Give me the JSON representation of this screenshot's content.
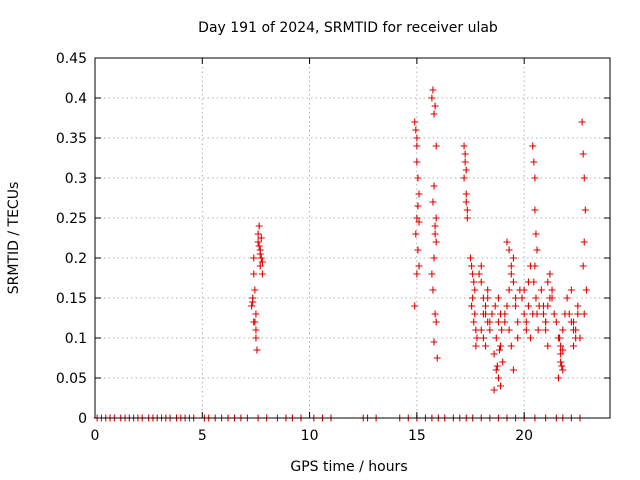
{
  "chart_data": {
    "type": "scatter",
    "title": "Day 191 of 2024, SRMTID for receiver ulab",
    "xlabel": "GPS time / hours",
    "ylabel": "SRMTID / TECUs",
    "xlim": [
      0,
      24
    ],
    "ylim": [
      0,
      0.45
    ],
    "xticks": [
      0,
      5,
      10,
      15,
      20
    ],
    "yticks": [
      0,
      0.05,
      0.1,
      0.15,
      0.2,
      0.25,
      0.3,
      0.35,
      0.4,
      0.45
    ],
    "xtick_labels": [
      "0",
      "5",
      "10",
      "15",
      "20"
    ],
    "ytick_labels": [
      "0",
      "0.05",
      "0.1",
      "0.15",
      "0.2",
      "0.25",
      "0.3",
      "0.35",
      "0.4",
      "0.45"
    ],
    "grid": true,
    "marker": "+",
    "color": "#e00000",
    "series": [
      {
        "name": "SRMTID",
        "x": [
          0.1,
          0.3,
          0.5,
          0.7,
          0.9,
          1.2,
          1.4,
          1.6,
          1.8,
          2.0,
          2.2,
          2.5,
          2.7,
          2.9,
          3.1,
          3.3,
          3.5,
          3.8,
          4.0,
          4.2,
          4.4,
          4.6,
          5.1,
          5.3,
          5.6,
          5.9,
          6.2,
          6.5,
          6.8,
          7.1,
          7.6,
          8.0,
          8.5,
          8.9,
          9.2,
          9.6,
          10.2,
          10.6,
          11.0,
          12.5,
          12.7,
          13.1,
          14.2,
          14.6,
          15.0,
          15.4,
          15.7,
          16.0,
          16.3,
          16.7,
          17.0,
          17.3,
          17.6,
          18.0,
          18.4,
          18.8,
          19.2,
          19.6,
          20.0,
          20.5,
          21.0,
          21.5,
          21.8,
          22.2,
          22.6,
          7.3,
          7.35,
          7.4,
          7.4,
          7.45,
          7.5,
          7.5,
          7.55,
          7.4,
          7.45,
          7.5,
          7.35,
          7.6,
          7.65,
          7.7,
          7.7,
          7.75,
          7.8,
          7.75,
          7.6,
          7.65,
          7.7,
          7.8,
          14.9,
          14.95,
          15.0,
          15.0,
          15.05,
          15.1,
          15.0,
          14.95,
          15.05,
          15.1,
          15.0,
          14.9,
          15.05,
          15.1,
          15.0,
          15.7,
          15.75,
          15.8,
          15.85,
          15.9,
          15.8,
          15.75,
          15.85,
          15.9,
          15.8,
          15.7,
          15.75,
          15.85,
          15.9,
          15.8,
          15.95,
          15.9,
          15.85,
          17.2,
          17.25,
          17.3,
          17.3,
          17.35,
          17.25,
          17.3,
          17.35,
          17.2,
          17.5,
          17.55,
          17.6,
          17.65,
          17.7,
          17.6,
          17.55,
          17.7,
          17.65,
          17.75,
          17.8,
          17.75,
          17.9,
          18.0,
          18.1,
          18.2,
          18.3,
          18.0,
          18.1,
          18.2,
          18.3,
          18.4,
          18.1,
          18.2,
          18.0,
          18.3,
          18.4,
          18.5,
          18.6,
          18.7,
          18.8,
          18.9,
          19.0,
          18.7,
          18.8,
          18.9,
          18.6,
          18.75,
          18.85,
          18.95,
          18.65,
          18.8,
          18.9,
          19.1,
          19.2,
          19.3,
          19.4,
          19.5,
          19.2,
          19.3,
          19.4,
          19.5,
          19.6,
          19.1,
          19.3,
          19.4,
          19.5,
          19.7,
          19.6,
          19.8,
          19.7,
          19.9,
          20.0,
          20.1,
          20.2,
          20.3,
          20.1,
          20.2,
          20.0,
          20.3,
          20.4,
          20.4,
          20.45,
          20.5,
          20.5,
          20.55,
          20.6,
          20.5,
          20.45,
          20.55,
          20.6,
          20.65,
          20.7,
          20.8,
          20.9,
          21.0,
          21.1,
          21.2,
          20.9,
          21.0,
          21.1,
          21.2,
          21.3,
          21.0,
          21.1,
          21.3,
          21.4,
          21.5,
          21.6,
          21.7,
          21.8,
          21.6,
          21.7,
          21.8,
          21.9,
          21.7,
          21.75,
          21.8,
          21.65,
          22.0,
          22.1,
          22.2,
          22.3,
          22.4,
          22.5,
          22.2,
          22.3,
          22.4,
          22.5,
          22.6,
          22.3,
          22.7,
          22.75,
          22.8,
          22.85,
          22.8,
          22.75,
          22.9,
          22.8
        ],
        "y": [
          0,
          0,
          0,
          0,
          0,
          0,
          0,
          0,
          0,
          0,
          0,
          0,
          0,
          0,
          0,
          0,
          0,
          0,
          0,
          0,
          0,
          0,
          0,
          0,
          0,
          0,
          0,
          0,
          0,
          0,
          0,
          0,
          0,
          0,
          0,
          0,
          0,
          0,
          0,
          0,
          0,
          0,
          0,
          0,
          0,
          0,
          0,
          0,
          0,
          0,
          0,
          0,
          0,
          0,
          0,
          0,
          0,
          0,
          0,
          0,
          0,
          0,
          0,
          0,
          0,
          0.14,
          0.15,
          0.12,
          0.2,
          0.16,
          0.1,
          0.13,
          0.085,
          0.18,
          0.12,
          0.11,
          0.145,
          0.22,
          0.24,
          0.21,
          0.19,
          0.2,
          0.18,
          0.225,
          0.23,
          0.215,
          0.205,
          0.195,
          0.37,
          0.36,
          0.35,
          0.34,
          0.3,
          0.28,
          0.25,
          0.23,
          0.21,
          0.19,
          0.18,
          0.14,
          0.265,
          0.245,
          0.32,
          0.4,
          0.41,
          0.38,
          0.39,
          0.34,
          0.29,
          0.27,
          0.24,
          0.22,
          0.2,
          0.18,
          0.16,
          0.13,
          0.12,
          0.095,
          0.075,
          0.25,
          0.23,
          0.34,
          0.33,
          0.31,
          0.28,
          0.26,
          0.32,
          0.27,
          0.25,
          0.3,
          0.2,
          0.19,
          0.18,
          0.17,
          0.16,
          0.15,
          0.14,
          0.13,
          0.12,
          0.11,
          0.1,
          0.09,
          0.18,
          0.17,
          0.15,
          0.13,
          0.12,
          0.11,
          0.1,
          0.14,
          0.16,
          0.12,
          0.13,
          0.09,
          0.19,
          0.15,
          0.11,
          0.13,
          0.08,
          0.06,
          0.05,
          0.04,
          0.07,
          0.1,
          0.12,
          0.09,
          0.035,
          0.065,
          0.085,
          0.11,
          0.14,
          0.15,
          0.13,
          0.12,
          0.14,
          0.16,
          0.18,
          0.2,
          0.22,
          0.21,
          0.19,
          0.17,
          0.15,
          0.13,
          0.11,
          0.09,
          0.06,
          0.1,
          0.14,
          0.16,
          0.12,
          0.15,
          0.13,
          0.11,
          0.17,
          0.19,
          0.12,
          0.14,
          0.16,
          0.1,
          0.13,
          0.34,
          0.32,
          0.3,
          0.26,
          0.23,
          0.21,
          0.19,
          0.17,
          0.15,
          0.13,
          0.11,
          0.14,
          0.16,
          0.14,
          0.12,
          0.17,
          0.15,
          0.13,
          0.11,
          0.09,
          0.18,
          0.16,
          0.12,
          0.14,
          0.15,
          0.13,
          0.12,
          0.1,
          0.08,
          0.06,
          0.05,
          0.07,
          0.11,
          0.13,
          0.09,
          0.065,
          0.085,
          0.1,
          0.15,
          0.13,
          0.12,
          0.11,
          0.1,
          0.14,
          0.16,
          0.12,
          0.11,
          0.13,
          0.1,
          0.09,
          0.37,
          0.33,
          0.3,
          0.26,
          0.22,
          0.19,
          0.16,
          0.13
        ]
      }
    ]
  }
}
